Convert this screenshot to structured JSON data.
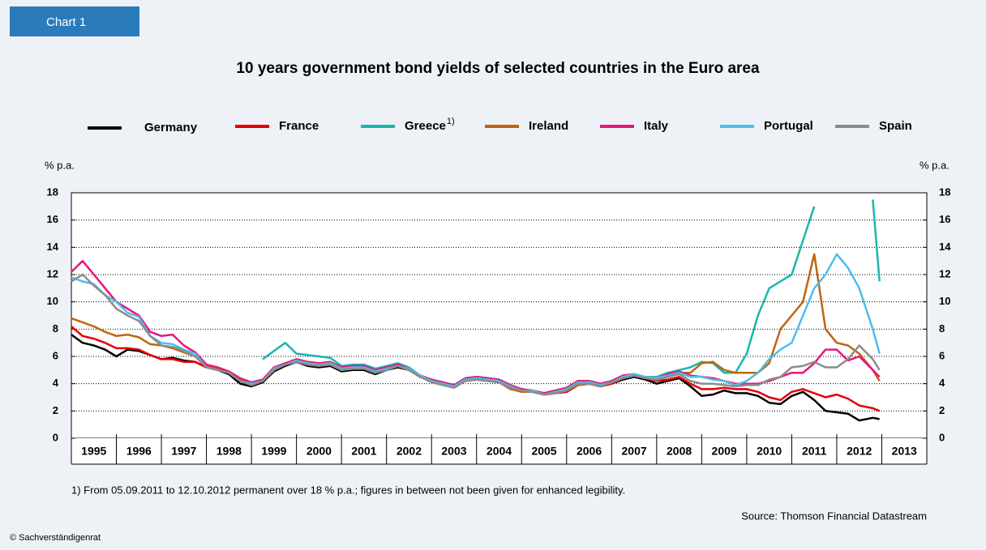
{
  "chart_data": {
    "type": "line",
    "tab_label": "Chart 1",
    "title": "10 years government bond yields of selected countries in the Euro area",
    "y_label": "% p.a.",
    "y2_label": "% p.a.",
    "footnote": "1) From 05.09.2011 to 12.10.2012 permanent over 18 % p.a.; figures in between not been given for enhanced legibility.",
    "source": "Source: Thomson Financial Datastream",
    "copyright": "© Sachverständigenrat",
    "x": [
      1995,
      1995.25,
      1995.5,
      1995.75,
      1996,
      1996.25,
      1996.5,
      1996.75,
      1997,
      1997.25,
      1997.5,
      1997.75,
      1998,
      1998.25,
      1998.5,
      1998.75,
      1999,
      1999.25,
      1999.5,
      1999.75,
      2000,
      2000.25,
      2000.5,
      2000.75,
      2001,
      2001.25,
      2001.5,
      2001.75,
      2002,
      2002.25,
      2002.5,
      2002.75,
      2003,
      2003.25,
      2003.5,
      2003.75,
      2004,
      2004.25,
      2004.5,
      2004.75,
      2005,
      2005.25,
      2005.5,
      2005.75,
      2006,
      2006.25,
      2006.5,
      2006.75,
      2007,
      2007.25,
      2007.5,
      2007.75,
      2008,
      2008.25,
      2008.5,
      2008.75,
      2009,
      2009.25,
      2009.5,
      2009.75,
      2010,
      2010.25,
      2010.5,
      2010.75,
      2011,
      2011.25,
      2011.5,
      2011.75,
      2012,
      2012.25,
      2012.5,
      2012.8,
      2012.95
    ],
    "xlim": [
      1995,
      2014
    ],
    "xticks": [
      1995,
      1996,
      1997,
      1998,
      1999,
      2000,
      2001,
      2002,
      2003,
      2004,
      2005,
      2006,
      2007,
      2008,
      2009,
      2010,
      2011,
      2012,
      2013
    ],
    "ylim": [
      0,
      18
    ],
    "yticks": [
      0,
      2,
      4,
      6,
      8,
      10,
      12,
      14,
      16,
      18
    ],
    "y2lim": [
      0,
      18
    ],
    "y2ticks": [
      0,
      2,
      4,
      6,
      8,
      10,
      12,
      14,
      16,
      18
    ],
    "grid": true,
    "series": [
      {
        "name": "Germany",
        "color": "#000000",
        "values": [
          7.6,
          7.0,
          6.8,
          6.5,
          6.0,
          6.5,
          6.4,
          6.1,
          5.8,
          5.9,
          5.7,
          5.6,
          5.2,
          5.0,
          4.7,
          4.0,
          3.8,
          4.1,
          4.9,
          5.3,
          5.6,
          5.3,
          5.2,
          5.3,
          4.9,
          5.0,
          5.0,
          4.7,
          5.0,
          5.2,
          5.0,
          4.5,
          4.2,
          4.0,
          3.8,
          4.2,
          4.3,
          4.2,
          4.1,
          3.8,
          3.6,
          3.4,
          3.2,
          3.3,
          3.4,
          3.9,
          4.0,
          3.8,
          4.0,
          4.3,
          4.5,
          4.3,
          4.0,
          4.2,
          4.4,
          3.8,
          3.1,
          3.2,
          3.5,
          3.3,
          3.3,
          3.1,
          2.6,
          2.5,
          3.1,
          3.4,
          2.8,
          2.0,
          1.9,
          1.8,
          1.3,
          1.5,
          1.4
        ]
      },
      {
        "name": "France",
        "color": "#e60000",
        "values": [
          8.2,
          7.5,
          7.3,
          7.0,
          6.6,
          6.6,
          6.5,
          6.1,
          5.8,
          5.8,
          5.6,
          5.6,
          5.2,
          5.0,
          4.8,
          4.2,
          3.9,
          4.2,
          5.0,
          5.4,
          5.7,
          5.4,
          5.3,
          5.4,
          5.0,
          5.1,
          5.1,
          4.8,
          5.0,
          5.3,
          5.0,
          4.5,
          4.2,
          4.0,
          3.8,
          4.2,
          4.3,
          4.3,
          4.2,
          3.8,
          3.6,
          3.4,
          3.2,
          3.3,
          3.4,
          3.9,
          4.0,
          3.8,
          4.0,
          4.4,
          4.6,
          4.4,
          4.2,
          4.3,
          4.5,
          4.0,
          3.6,
          3.6,
          3.7,
          3.6,
          3.6,
          3.4,
          3.0,
          2.8,
          3.4,
          3.6,
          3.3,
          3.0,
          3.2,
          2.9,
          2.4,
          2.2,
          2.0
        ]
      },
      {
        "name": "Greece",
        "superscript": "1)",
        "color": "#1bb5ae",
        "values": [
          null,
          null,
          null,
          null,
          null,
          null,
          null,
          null,
          null,
          null,
          null,
          null,
          null,
          null,
          null,
          null,
          null,
          5.8,
          6.4,
          7.0,
          6.2,
          6.1,
          6.0,
          5.9,
          5.3,
          5.4,
          5.4,
          5.1,
          5.3,
          5.5,
          5.2,
          4.6,
          4.3,
          4.1,
          3.9,
          4.4,
          4.5,
          4.4,
          4.3,
          3.9,
          3.6,
          3.5,
          3.3,
          3.5,
          3.7,
          4.2,
          4.2,
          4.0,
          4.2,
          4.6,
          4.7,
          4.5,
          4.5,
          4.8,
          5.0,
          5.2,
          5.6,
          5.5,
          4.8,
          4.8,
          6.2,
          9.0,
          11.0,
          11.5,
          12.0,
          14.5,
          17.0,
          null,
          null,
          null,
          null,
          17.5,
          11.5
        ]
      },
      {
        "name": "Ireland",
        "color": "#c0650f",
        "values": [
          8.8,
          8.5,
          8.2,
          7.8,
          7.5,
          7.6,
          7.4,
          6.9,
          6.8,
          6.6,
          6.3,
          6.0,
          5.3,
          5.1,
          4.8,
          4.3,
          3.9,
          4.2,
          5.1,
          5.5,
          5.7,
          5.5,
          5.4,
          5.4,
          5.0,
          5.1,
          5.1,
          4.8,
          5.1,
          5.3,
          5.0,
          4.5,
          4.2,
          4.0,
          3.8,
          4.2,
          4.3,
          4.2,
          4.1,
          3.6,
          3.4,
          3.4,
          3.2,
          3.3,
          3.5,
          3.9,
          4.0,
          3.8,
          4.1,
          4.4,
          4.6,
          4.5,
          4.4,
          4.6,
          4.8,
          4.8,
          5.5,
          5.6,
          5.0,
          4.8,
          4.8,
          4.8,
          5.5,
          8.0,
          9.0,
          10.0,
          13.5,
          8.0,
          7.0,
          6.8,
          6.2,
          5.0,
          4.2
        ]
      },
      {
        "name": "Italy",
        "color": "#e8157c",
        "values": [
          12.2,
          13.0,
          12.0,
          11.0,
          10.0,
          9.5,
          9.0,
          7.8,
          7.5,
          7.6,
          6.8,
          6.3,
          5.4,
          5.2,
          4.9,
          4.4,
          4.1,
          4.3,
          5.2,
          5.5,
          5.8,
          5.6,
          5.5,
          5.6,
          5.2,
          5.3,
          5.3,
          5.0,
          5.2,
          5.4,
          5.1,
          4.6,
          4.3,
          4.1,
          3.9,
          4.4,
          4.5,
          4.4,
          4.3,
          3.9,
          3.6,
          3.5,
          3.3,
          3.5,
          3.7,
          4.2,
          4.2,
          4.0,
          4.2,
          4.6,
          4.7,
          4.5,
          4.4,
          4.7,
          4.9,
          4.6,
          4.5,
          4.4,
          4.2,
          4.0,
          4.0,
          4.0,
          4.2,
          4.5,
          4.8,
          4.8,
          5.5,
          6.5,
          6.5,
          5.7,
          6.0,
          5.0,
          4.5
        ]
      },
      {
        "name": "Portugal",
        "color": "#4dbdee",
        "values": [
          11.8,
          11.5,
          11.3,
          10.5,
          10.0,
          9.2,
          8.9,
          7.5,
          7.0,
          6.9,
          6.5,
          6.2,
          5.2,
          5.0,
          4.8,
          4.2,
          4.0,
          4.2,
          5.1,
          5.4,
          5.7,
          5.5,
          5.4,
          5.5,
          5.1,
          5.2,
          5.2,
          4.9,
          5.1,
          5.3,
          5.1,
          4.6,
          4.2,
          4.0,
          3.8,
          4.3,
          4.4,
          4.3,
          4.2,
          3.8,
          3.5,
          3.5,
          3.2,
          3.4,
          3.6,
          4.1,
          4.1,
          3.9,
          4.1,
          4.5,
          4.7,
          4.5,
          4.4,
          4.6,
          4.8,
          4.5,
          4.5,
          4.3,
          4.2,
          3.9,
          4.2,
          4.8,
          5.8,
          6.5,
          7.0,
          9.0,
          11.0,
          12.0,
          13.5,
          12.5,
          11.0,
          8.0,
          6.2
        ]
      },
      {
        "name": "Spain",
        "color": "#8c8c8c",
        "values": [
          11.5,
          12.0,
          11.2,
          10.5,
          9.5,
          9.0,
          8.6,
          7.5,
          6.8,
          6.7,
          6.4,
          6.0,
          5.2,
          5.0,
          4.8,
          4.2,
          3.9,
          4.2,
          5.0,
          5.4,
          5.6,
          5.4,
          5.3,
          5.4,
          5.0,
          5.1,
          5.1,
          4.8,
          5.0,
          5.3,
          5.0,
          4.5,
          4.1,
          3.9,
          3.7,
          4.2,
          4.3,
          4.2,
          4.1,
          3.7,
          3.5,
          3.4,
          3.2,
          3.3,
          3.5,
          4.0,
          4.0,
          3.8,
          4.1,
          4.4,
          4.6,
          4.4,
          4.3,
          4.5,
          4.7,
          4.2,
          4.0,
          4.0,
          3.9,
          3.8,
          3.9,
          3.9,
          4.3,
          4.5,
          5.2,
          5.3,
          5.6,
          5.2,
          5.2,
          5.8,
          6.8,
          5.8,
          5.0
        ]
      }
    ]
  }
}
